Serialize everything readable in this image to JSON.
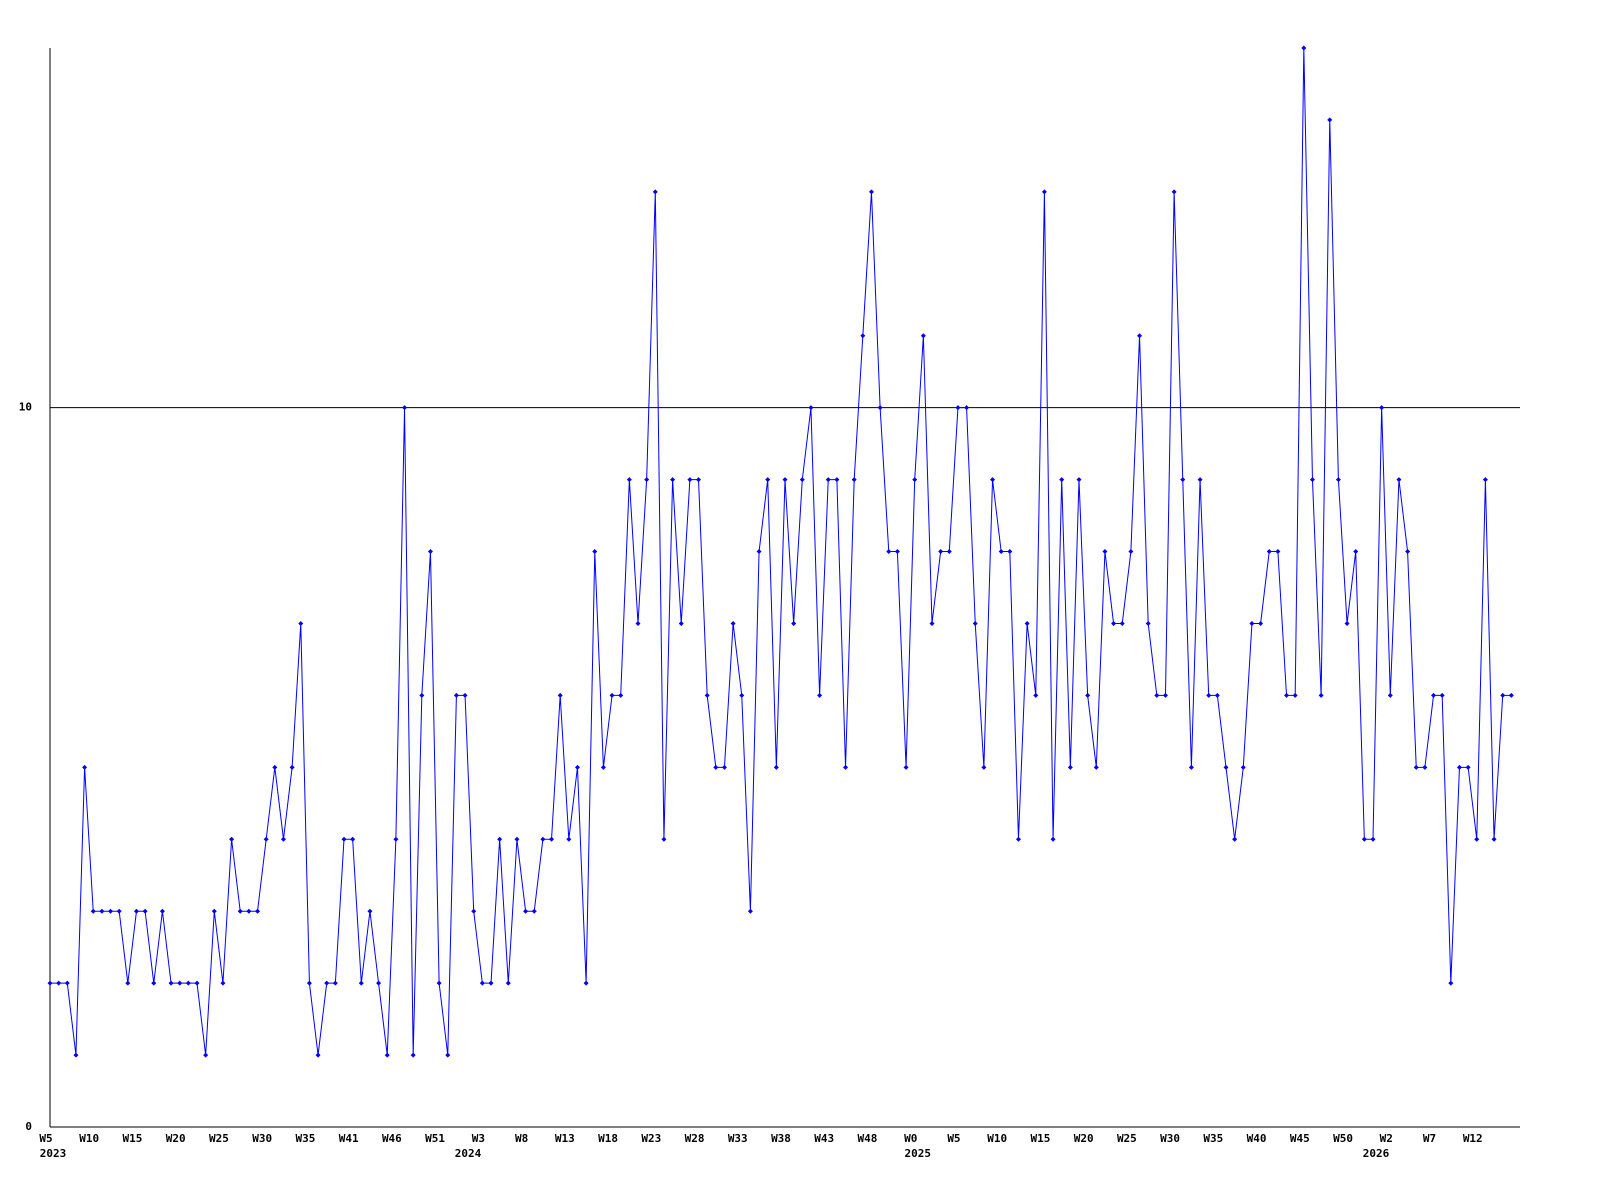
{
  "chart_data": {
    "type": "line",
    "categories": [
      "W5",
      null,
      null,
      null,
      null,
      "W10",
      null,
      null,
      null,
      null,
      "W15",
      null,
      null,
      null,
      null,
      "W20",
      null,
      null,
      null,
      null,
      "W25",
      null,
      null,
      null,
      null,
      "W30",
      null,
      null,
      null,
      null,
      "W35",
      null,
      null,
      null,
      null,
      "W41",
      null,
      null,
      null,
      null,
      "W46",
      null,
      null,
      null,
      null,
      "W51",
      null,
      null,
      null,
      null,
      "W3",
      null,
      null,
      null,
      null,
      "W8",
      null,
      null,
      null,
      null,
      "W13",
      null,
      null,
      null,
      null,
      "W18",
      null,
      null,
      null,
      null,
      "W23",
      null,
      null,
      null,
      null,
      "W28",
      null,
      null,
      null,
      null,
      "W33",
      null,
      null,
      null,
      null,
      "W38",
      null,
      null,
      null,
      null,
      "W43",
      null,
      null,
      null,
      null,
      "W48",
      null,
      null,
      null,
      null,
      "W0",
      null,
      null,
      null,
      null,
      "W5",
      null,
      null,
      null,
      null,
      "W10",
      null,
      null,
      null,
      null,
      "W15",
      null,
      null,
      null,
      null,
      "W20",
      null,
      null,
      null,
      null,
      "W25",
      null,
      null,
      null,
      null,
      "W30",
      null,
      null,
      null,
      null,
      "W35",
      null,
      null,
      null,
      null,
      "W40",
      null,
      null,
      null,
      null,
      "W45",
      null,
      null,
      null,
      null,
      "W50",
      null,
      null,
      null,
      null,
      "W2",
      null,
      null,
      null,
      null,
      "W7",
      null,
      null,
      null,
      null,
      "W12",
      null,
      null,
      null,
      null
    ],
    "category_years": [
      "2023",
      null,
      null,
      null,
      null,
      null,
      null,
      null,
      null,
      null,
      null,
      null,
      null,
      null,
      null,
      null,
      null,
      null,
      null,
      null,
      null,
      null,
      null,
      null,
      null,
      null,
      null,
      null,
      null,
      null,
      null,
      null,
      null,
      null,
      null,
      null,
      null,
      null,
      null,
      null,
      null,
      null,
      null,
      null,
      null,
      null,
      null,
      null,
      "2024",
      null,
      null,
      null,
      null,
      null,
      null,
      null,
      null,
      null,
      null,
      null,
      null,
      null,
      null,
      null,
      null,
      null,
      null,
      null,
      null,
      null,
      null,
      null,
      null,
      null,
      null,
      null,
      null,
      null,
      null,
      null,
      null,
      null,
      null,
      null,
      null,
      null,
      null,
      null,
      null,
      null,
      null,
      null,
      null,
      null,
      null,
      null,
      null,
      null,
      null,
      null,
      "2025",
      null,
      null,
      null,
      null,
      null,
      null,
      null,
      null,
      null,
      null,
      null,
      null,
      null,
      null,
      null,
      null,
      null,
      null,
      null,
      null,
      null,
      null,
      null,
      null,
      null,
      null,
      null,
      null,
      null,
      null,
      null,
      null,
      null,
      null,
      null,
      null,
      null,
      null,
      null,
      null,
      null,
      null,
      null,
      null,
      null,
      null,
      null,
      null,
      null,
      null,
      null,
      null,
      "2026",
      null,
      null,
      null,
      null,
      null,
      null,
      null,
      null,
      null,
      null,
      null,
      null,
      null,
      null,
      null,
      null
    ],
    "values": [
      2,
      2,
      2,
      1,
      5,
      3,
      3,
      3,
      3,
      2,
      3,
      3,
      2,
      3,
      2,
      2,
      2,
      2,
      1,
      3,
      2,
      4,
      3,
      3,
      3,
      4,
      5,
      4,
      5,
      7,
      2,
      1,
      2,
      2,
      4,
      4,
      2,
      3,
      2,
      1,
      4,
      10,
      1,
      6,
      8,
      2,
      1,
      6,
      6,
      3,
      2,
      2,
      4,
      2,
      4,
      3,
      3,
      4,
      4,
      6,
      4,
      5,
      2,
      8,
      5,
      6,
      6,
      9,
      7,
      9,
      13,
      4,
      9,
      7,
      9,
      9,
      6,
      5,
      5,
      7,
      6,
      3,
      8,
      9,
      5,
      9,
      7,
      9,
      10,
      6,
      9,
      9,
      5,
      9,
      11,
      13,
      10,
      8,
      8,
      5,
      9,
      11,
      7,
      8,
      8,
      10,
      10,
      7,
      5,
      9,
      8,
      8,
      4,
      7,
      6,
      13,
      4,
      9,
      5,
      9,
      6,
      5,
      8,
      7,
      7,
      8,
      11,
      7,
      6,
      6,
      13,
      9,
      5,
      9,
      6,
      6,
      5,
      4,
      5,
      7,
      7,
      8,
      8,
      6,
      6,
      15,
      9,
      6,
      14,
      9,
      7,
      8,
      4,
      4,
      10,
      6,
      9,
      8,
      5,
      5,
      6,
      6,
      2,
      5,
      5,
      4,
      9,
      4,
      6,
      6
    ],
    "color": "#0000ff",
    "ylim": [
      0,
      15
    ],
    "yticks": [
      0,
      10
    ],
    "grid": true
  }
}
